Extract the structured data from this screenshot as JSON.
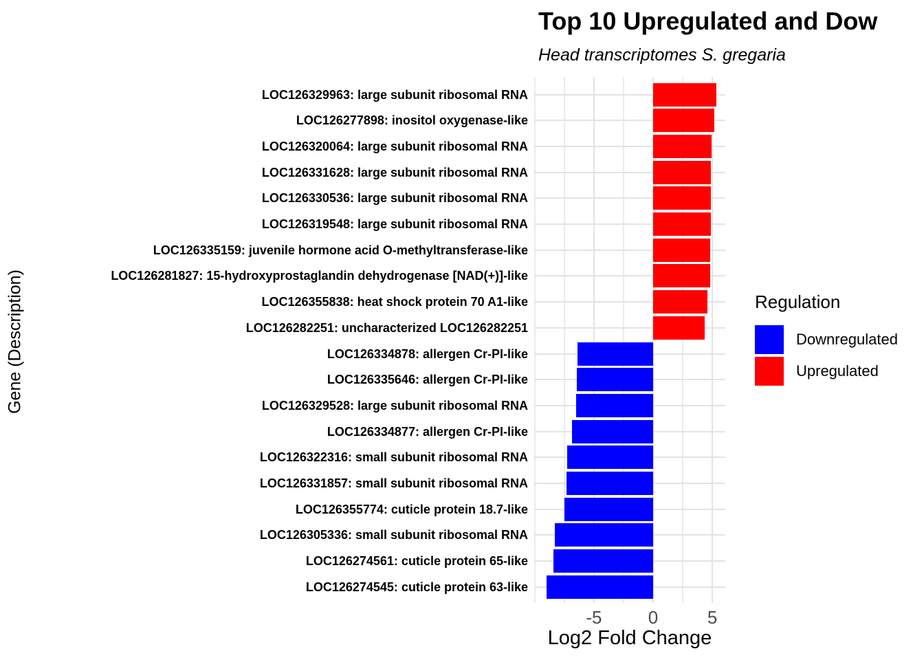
{
  "title": "Top 10 Upregulated and Dow",
  "subtitle": "Head transcriptomes S. gregaria",
  "axes": {
    "x_label": "Log2 Fold Change",
    "y_label": "Gene (Description)",
    "x_major_ticks": [
      -5,
      0,
      5
    ],
    "x_minor_gridlines": [
      -10,
      -7.5,
      -2.5,
      2.5
    ]
  },
  "legend": {
    "title": "Regulation",
    "items": [
      {
        "label": "Downregulated",
        "color": "#0000FF"
      },
      {
        "label": "Upregulated",
        "color": "#FF0000"
      }
    ]
  },
  "colors": {
    "Upregulated": "#FF0000",
    "Downregulated": "#0000FF",
    "gridline_major": "#E3E3E3",
    "gridline_minor": "#EBEBEB",
    "tick_label": "#4D4D4D"
  },
  "chart_data": {
    "type": "bar",
    "orientation": "horizontal",
    "title": "Top 10 Upregulated and Dow",
    "subtitle": "Head transcriptomes S. gregaria",
    "xlabel": "Log2 Fold Change",
    "ylabel": "Gene (Description)",
    "xlim": [
      -10.05,
      6.1
    ],
    "x_ticks": [
      -5,
      0,
      5
    ],
    "grid": true,
    "legend_position": "right",
    "categories": [
      "LOC126329963: large subunit ribosomal RNA",
      "LOC126277898: inositol oxygenase-like",
      "LOC126320064: large subunit ribosomal RNA",
      "LOC126331628: large subunit ribosomal RNA",
      "LOC126330536: large subunit ribosomal RNA",
      "LOC126319548: large subunit ribosomal RNA",
      "LOC126335159: juvenile hormone acid O-methyltransferase-like",
      "LOC126281827: 15-hydroxyprostaglandin dehydrogenase [NAD(+)]-like",
      "LOC126355838: heat shock protein 70 A1-like",
      "LOC126282251: uncharacterized LOC126282251",
      "LOC126334878: allergen Cr-PI-like",
      "LOC126335646: allergen Cr-PI-like",
      "LOC126329528: large subunit ribosomal RNA",
      "LOC126334877: allergen Cr-PI-like",
      "LOC126322316: small subunit ribosomal RNA",
      "LOC126331857: small subunit ribosomal RNA",
      "LOC126355774: cuticle protein 18.7-like",
      "LOC126305336: small subunit ribosomal RNA",
      "LOC126274561: cuticle protein 65-like",
      "LOC126274545: cuticle protein 63-like"
    ],
    "series": [
      {
        "name": "Log2 Fold Change",
        "values": [
          5.35,
          5.15,
          4.95,
          4.9,
          4.9,
          4.9,
          4.85,
          4.85,
          4.6,
          4.35,
          -6.4,
          -6.45,
          -6.5,
          -6.85,
          -7.25,
          -7.3,
          -7.5,
          -8.3,
          -8.4,
          -9.0
        ]
      }
    ],
    "regulation": [
      "Upregulated",
      "Upregulated",
      "Upregulated",
      "Upregulated",
      "Upregulated",
      "Upregulated",
      "Upregulated",
      "Upregulated",
      "Upregulated",
      "Upregulated",
      "Downregulated",
      "Downregulated",
      "Downregulated",
      "Downregulated",
      "Downregulated",
      "Downregulated",
      "Downregulated",
      "Downregulated",
      "Downregulated",
      "Downregulated"
    ]
  }
}
